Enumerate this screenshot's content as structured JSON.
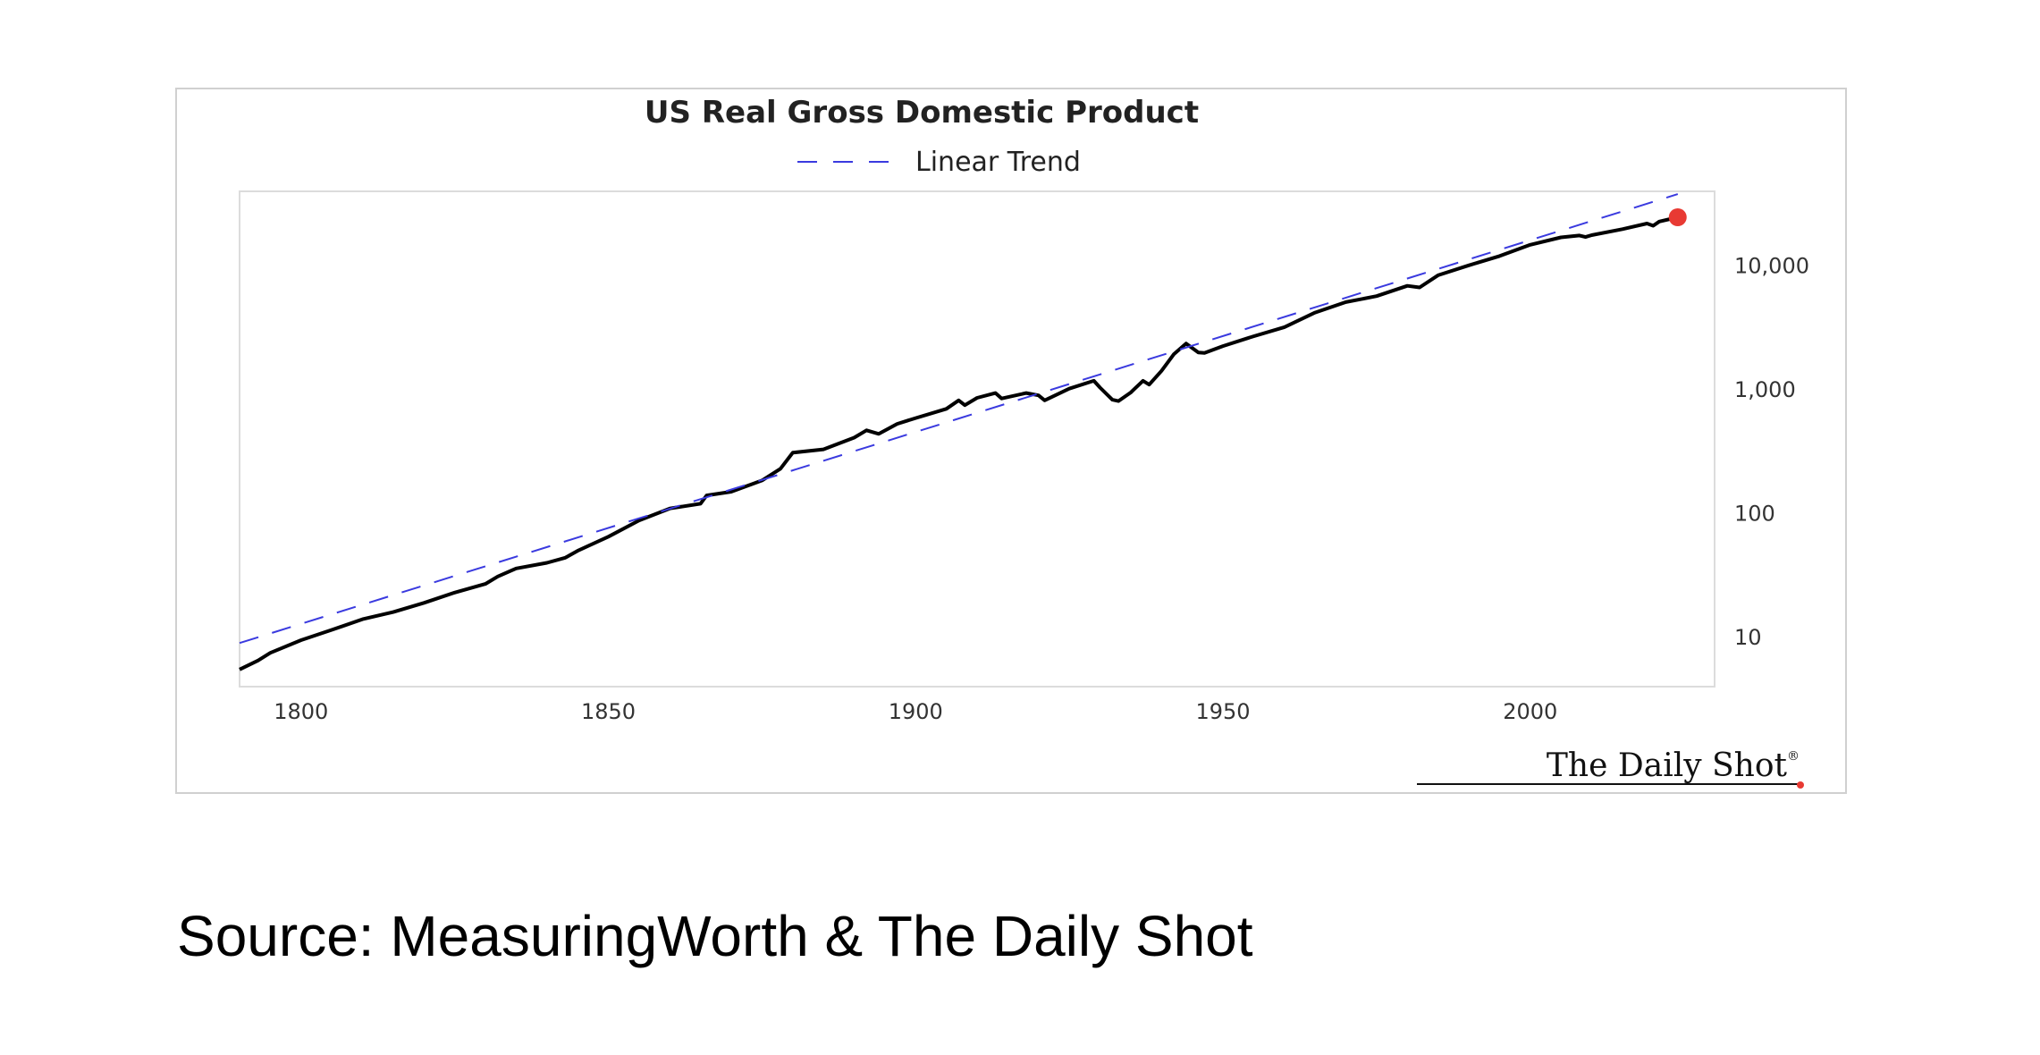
{
  "chart_data": {
    "type": "line",
    "title": "US Real Gross Domestic Product",
    "xlabel": "",
    "ylabel": "",
    "y_scale": "log",
    "xlim": [
      1790,
      2030
    ],
    "ylim": [
      4,
      40000
    ],
    "x_ticks": [
      1800,
      1850,
      1900,
      1950,
      2000
    ],
    "x_tick_labels": [
      "1800",
      "1850",
      "1900",
      "1950",
      "2000"
    ],
    "y_ticks": [
      10,
      100,
      1000,
      10000
    ],
    "y_tick_labels": [
      "10",
      "100",
      "1,000",
      "10,000"
    ],
    "y_axis_position": "right",
    "grid": false,
    "legend_position": "top-center",
    "series": [
      {
        "name": "",
        "style": "solid",
        "color": "#000000",
        "x": [
          1790,
          1793,
          1795,
          1800,
          1805,
          1810,
          1815,
          1820,
          1825,
          1830,
          1832,
          1835,
          1840,
          1843,
          1845,
          1850,
          1855,
          1860,
          1865,
          1866,
          1870,
          1875,
          1878,
          1880,
          1885,
          1890,
          1892,
          1894,
          1897,
          1900,
          1905,
          1907,
          1908,
          1910,
          1913,
          1914,
          1918,
          1920,
          1921,
          1925,
          1929,
          1930,
          1932,
          1933,
          1935,
          1937,
          1938,
          1940,
          1942,
          1944,
          1946,
          1947,
          1950,
          1955,
          1960,
          1965,
          1970,
          1975,
          1980,
          1982,
          1985,
          1990,
          1995,
          2000,
          2005,
          2008,
          2009,
          2010,
          2015,
          2019,
          2020,
          2021,
          2024
        ],
        "values": [
          5.5,
          6.5,
          7.5,
          9.5,
          11.5,
          14,
          16,
          19,
          23,
          27,
          31,
          36,
          40,
          44,
          50,
          65,
          88,
          110,
          120,
          140,
          150,
          185,
          230,
          310,
          330,
          410,
          470,
          440,
          530,
          590,
          700,
          820,
          750,
          860,
          940,
          850,
          940,
          900,
          820,
          1020,
          1180,
          1040,
          830,
          810,
          950,
          1180,
          1100,
          1420,
          1930,
          2360,
          2000,
          1980,
          2250,
          2700,
          3200,
          4200,
          5100,
          5700,
          6900,
          6700,
          8400,
          10100,
          12000,
          14800,
          17000,
          17600,
          17100,
          17700,
          19800,
          22000,
          21100,
          22800,
          24700
        ]
      },
      {
        "name": "Linear Trend",
        "style": "dashed",
        "color": "#3a3adf",
        "x": [
          1790,
          2024
        ],
        "values": [
          9,
          38000
        ]
      }
    ],
    "highlight_point": {
      "x": 2024,
      "y": 24700,
      "color": "#e83a33"
    },
    "watermark": "The Daily Shot",
    "watermark_mark": "®"
  },
  "source": "Source: MeasuringWorth & The Daily Shot"
}
